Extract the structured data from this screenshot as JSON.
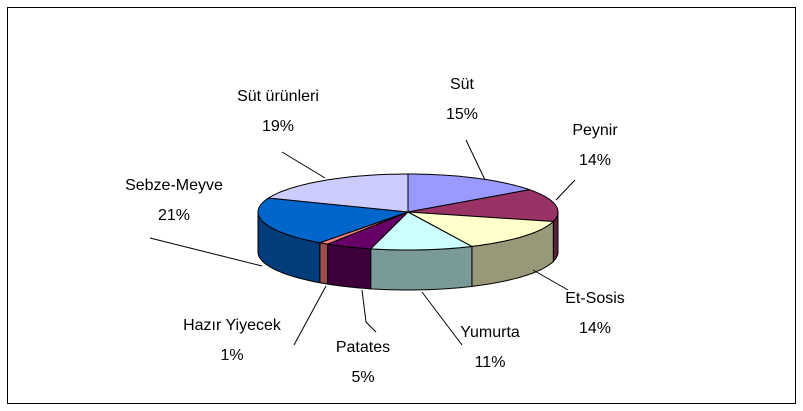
{
  "chart_data": {
    "type": "pie",
    "categories": [
      "Süt",
      "Peynir",
      "Et-Sosis",
      "Yumurta",
      "Patates",
      "Hazır Yiyecek",
      "Sebze-Meyve",
      "Süt ürünleri"
    ],
    "values": [
      15,
      14,
      14,
      11,
      5,
      1,
      21,
      19
    ],
    "value_labels": [
      "15%",
      "14%",
      "14%",
      "11%",
      "5%",
      "1%",
      "21%",
      "19%"
    ],
    "colors": [
      "#9999ff",
      "#993366",
      "#ffffcc",
      "#ccffff",
      "#660066",
      "#ff8080",
      "#0066cc",
      "#ccccff"
    ]
  }
}
